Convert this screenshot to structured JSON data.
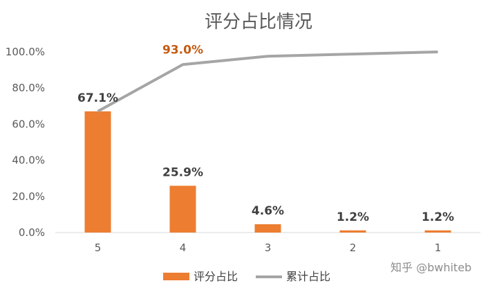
{
  "chart_data": {
    "type": "bar",
    "title": "评分占比情况",
    "categories": [
      "5",
      "4",
      "3",
      "2",
      "1"
    ],
    "series": [
      {
        "name": "评分占比",
        "type": "bar",
        "values": [
          67.1,
          25.9,
          4.6,
          1.2,
          1.2
        ],
        "color": "#ed7d31",
        "labels": [
          "67.1%",
          "25.9%",
          "4.6%",
          "1.2%",
          "1.2%"
        ]
      },
      {
        "name": "累计占比",
        "type": "line",
        "values": [
          67.1,
          93.0,
          97.6,
          98.8,
          100.0
        ],
        "color": "#a5a5a5",
        "labels": [
          "",
          "93.0%",
          "",
          "",
          ""
        ]
      }
    ],
    "yticks": [
      "0.0%",
      "20.0%",
      "40.0%",
      "60.0%",
      "80.0%",
      "100.0%"
    ],
    "ylim": [
      0,
      100
    ],
    "grid": false,
    "legend": "bottom",
    "highlight_color": "#c55a11"
  },
  "watermark": "知乎 @bwhiteb"
}
